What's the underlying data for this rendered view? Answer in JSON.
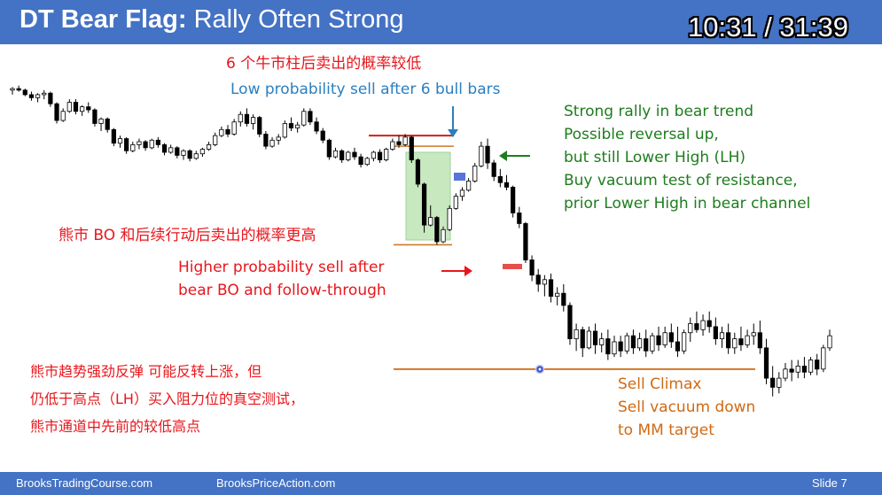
{
  "header": {
    "title_bold": "DT Bear Flag:",
    "title_rest": " Rally Often Strong",
    "timer": "10:31 / 31:39"
  },
  "annotations": {
    "top_cn": "6 个牛市柱后卖出的概率较低",
    "top_en": "Low probability sell after 6 bull bars",
    "right_lines": [
      "Strong rally in bear trend",
      "Possible reversal up,",
      "but still Lower High (LH)",
      "Buy vacuum test of resistance,",
      "prior Lower High in bear channel"
    ],
    "mid_cn": "熊市 BO 和后续行动后卖出的概率更高",
    "mid_en_1": "Higher probability sell after",
    "mid_en_2": "bear BO and follow-through",
    "bottom_cn_1": "熊市趋势强劲反弹 可能反转上涨，但",
    "bottom_cn_2": "仍低于高点（LH）买入阻力位的真空测试，",
    "bottom_cn_3": "熊市通道中先前的较低高点",
    "sell_lines": [
      "Sell Climax",
      "Sell vacuum down",
      "to MM target"
    ]
  },
  "footer": {
    "left": "BrooksTradingCourse.com",
    "center": "BrooksPriceAction.com",
    "slide": "Slide  7"
  },
  "colors": {
    "title_bar": "#4472c4",
    "red_text": "#e8161c",
    "blue_text": "#2a7fc1",
    "green_text": "#1e7d1e",
    "orange_text": "#d06a14",
    "highlight_box": "#c8e8c0",
    "resistance_line": "#cc2020",
    "support_line": "#d07828"
  },
  "chart_data": {
    "type": "candlestick",
    "bars": [
      [
        124,
        126,
        121,
        125
      ],
      [
        125,
        127,
        123,
        124
      ],
      [
        124,
        125,
        120,
        121
      ],
      [
        121,
        123,
        117,
        119
      ],
      [
        119,
        122,
        116,
        121
      ],
      [
        121,
        124,
        118,
        122
      ],
      [
        122,
        123,
        113,
        115
      ],
      [
        115,
        116,
        102,
        104
      ],
      [
        104,
        112,
        103,
        110
      ],
      [
        110,
        118,
        109,
        116
      ],
      [
        116,
        118,
        108,
        110
      ],
      [
        110,
        114,
        107,
        113
      ],
      [
        113,
        116,
        109,
        111
      ],
      [
        111,
        112,
        100,
        102
      ],
      [
        102,
        106,
        97,
        105
      ],
      [
        105,
        106,
        96,
        98
      ],
      [
        98,
        99,
        87,
        89
      ],
      [
        89,
        94,
        86,
        92
      ],
      [
        92,
        93,
        82,
        84
      ],
      [
        84,
        90,
        83,
        88
      ],
      [
        88,
        92,
        85,
        90
      ],
      [
        90,
        91,
        84,
        86
      ],
      [
        86,
        92,
        85,
        91
      ],
      [
        91,
        93,
        86,
        88
      ],
      [
        88,
        89,
        81,
        83
      ],
      [
        83,
        88,
        82,
        86
      ],
      [
        86,
        87,
        79,
        81
      ],
      [
        81,
        85,
        78,
        84
      ],
      [
        84,
        85,
        77,
        79
      ],
      [
        79,
        84,
        78,
        82
      ],
      [
        82,
        86,
        80,
        85
      ],
      [
        85,
        90,
        84,
        88
      ],
      [
        88,
        96,
        87,
        94
      ],
      [
        94,
        100,
        93,
        98
      ],
      [
        98,
        101,
        93,
        95
      ],
      [
        95,
        105,
        94,
        103
      ],
      [
        103,
        110,
        100,
        108
      ],
      [
        108,
        112,
        100,
        102
      ],
      [
        102,
        108,
        98,
        106
      ],
      [
        106,
        107,
        93,
        95
      ],
      [
        95,
        97,
        85,
        87
      ],
      [
        87,
        93,
        86,
        91
      ],
      [
        91,
        95,
        88,
        93
      ],
      [
        93,
        104,
        92,
        102
      ],
      [
        102,
        106,
        97,
        99
      ],
      [
        99,
        103,
        96,
        101
      ],
      [
        101,
        112,
        100,
        110
      ],
      [
        110,
        112,
        101,
        103
      ],
      [
        103,
        106,
        95,
        97
      ],
      [
        97,
        99,
        89,
        91
      ],
      [
        91,
        92,
        78,
        80
      ],
      [
        80,
        86,
        79,
        84
      ],
      [
        84,
        85,
        76,
        78
      ],
      [
        78,
        84,
        77,
        83
      ],
      [
        83,
        86,
        78,
        80
      ],
      [
        80,
        82,
        73,
        75
      ],
      [
        75,
        80,
        74,
        79
      ],
      [
        79,
        84,
        77,
        83
      ],
      [
        83,
        85,
        76,
        78
      ],
      [
        78,
        86,
        77,
        85
      ],
      [
        85,
        92,
        84,
        90
      ],
      [
        90,
        94,
        86,
        88
      ],
      [
        88,
        95,
        87,
        93
      ],
      [
        93,
        94,
        76,
        78
      ],
      [
        78,
        79,
        60,
        62
      ],
      [
        62,
        63,
        30,
        35
      ],
      [
        35,
        48,
        34,
        40
      ],
      [
        40,
        41,
        22,
        24
      ],
      [
        24,
        34,
        23,
        32
      ],
      [
        32,
        48,
        31,
        46
      ],
      [
        46,
        56,
        45,
        54
      ],
      [
        54,
        60,
        51,
        58
      ],
      [
        58,
        66,
        57,
        64
      ],
      [
        64,
        76,
        63,
        74
      ],
      [
        74,
        90,
        73,
        87
      ],
      [
        87,
        92,
        72,
        76
      ],
      [
        76,
        78,
        64,
        67
      ],
      [
        67,
        72,
        60,
        63
      ],
      [
        63,
        68,
        58,
        60
      ],
      [
        60,
        61,
        40,
        43
      ],
      [
        43,
        47,
        33,
        36
      ],
      [
        36,
        37,
        10,
        12
      ],
      [
        12,
        15,
        -2,
        2
      ],
      [
        2,
        6,
        -9,
        -4
      ],
      [
        -4,
        2,
        -12,
        -1
      ],
      [
        -1,
        3,
        -16,
        -12
      ],
      [
        -12,
        -6,
        -18,
        -10
      ],
      [
        -10,
        -4,
        -22,
        -18
      ],
      [
        -18,
        -16,
        -44,
        -40
      ],
      [
        -40,
        -30,
        -48,
        -34
      ],
      [
        -34,
        -32,
        -52,
        -46
      ],
      [
        -46,
        -32,
        -47,
        -35
      ],
      [
        -35,
        -30,
        -50,
        -44
      ],
      [
        -44,
        -36,
        -49,
        -40
      ],
      [
        -40,
        -34,
        -54,
        -50
      ],
      [
        -50,
        -38,
        -52,
        -42
      ],
      [
        -42,
        -38,
        -52,
        -48
      ],
      [
        -48,
        -36,
        -50,
        -38
      ],
      [
        -38,
        -34,
        -50,
        -46
      ],
      [
        -46,
        -36,
        -48,
        -40
      ],
      [
        -40,
        -34,
        -52,
        -48
      ],
      [
        -48,
        -36,
        -50,
        -38
      ],
      [
        -38,
        -32,
        -48,
        -44
      ],
      [
        -44,
        -32,
        -46,
        -36
      ],
      [
        -36,
        -30,
        -46,
        -42
      ],
      [
        -42,
        -32,
        -52,
        -48
      ],
      [
        -48,
        -34,
        -50,
        -36
      ],
      [
        -36,
        -26,
        -42,
        -30
      ],
      [
        -30,
        -22,
        -36,
        -34
      ],
      [
        -34,
        -24,
        -38,
        -28
      ],
      [
        -28,
        -22,
        -36,
        -32
      ],
      [
        -32,
        -26,
        -44,
        -40
      ],
      [
        -40,
        -32,
        -46,
        -36
      ],
      [
        -36,
        -30,
        -50,
        -46
      ],
      [
        -46,
        -36,
        -50,
        -40
      ],
      [
        -40,
        -32,
        -48,
        -44
      ],
      [
        -44,
        -34,
        -46,
        -38
      ],
      [
        -38,
        -30,
        -44,
        -36
      ],
      [
        -36,
        -28,
        -50,
        -46
      ],
      [
        -46,
        -40,
        -70,
        -66
      ],
      [
        -66,
        -58,
        -78,
        -72
      ],
      [
        -72,
        -62,
        -76,
        -66
      ],
      [
        -66,
        -56,
        -68,
        -60
      ],
      [
        -60,
        -54,
        -68,
        -62
      ],
      [
        -62,
        -54,
        -66,
        -58
      ],
      [
        -58,
        -52,
        -66,
        -62
      ],
      [
        -62,
        -52,
        -64,
        -54
      ],
      [
        -54,
        -50,
        -64,
        -60
      ],
      [
        -60,
        -44,
        -62,
        -46
      ],
      [
        -46,
        -34,
        -48,
        -38
      ]
    ],
    "resistance": 94,
    "flag_high": 87,
    "flag_low": 22,
    "mm_target": -60
  }
}
